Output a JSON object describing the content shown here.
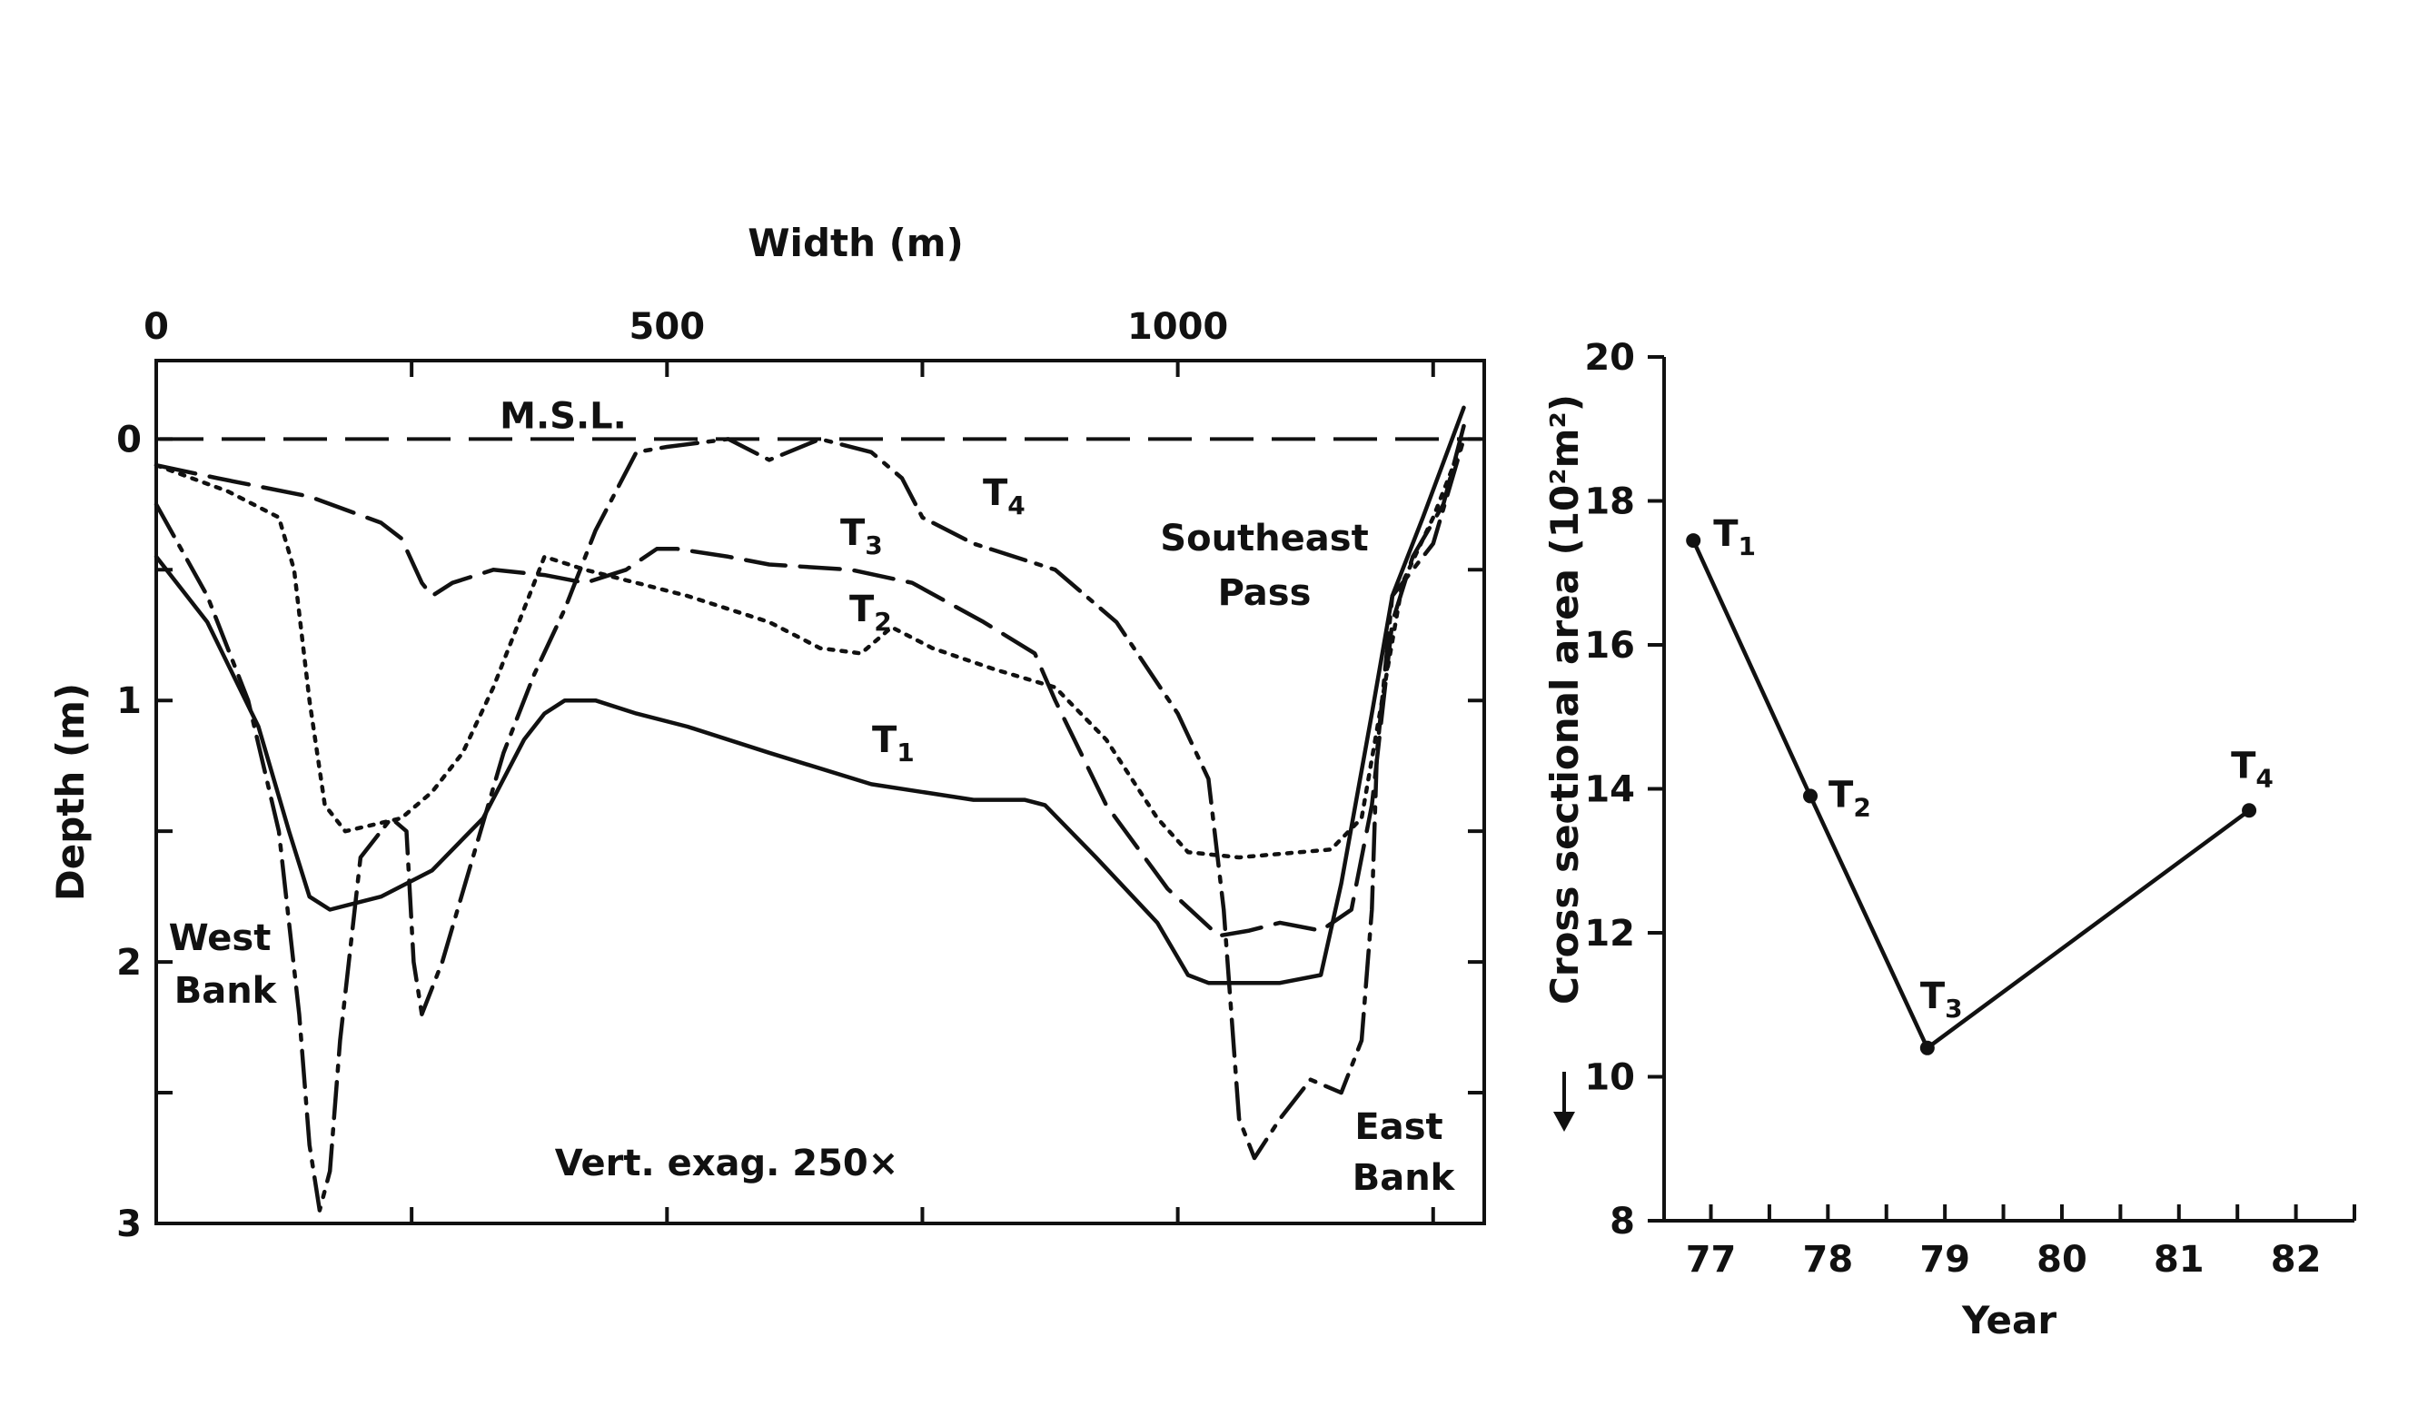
{
  "chart_data": [
    {
      "type": "line",
      "title": "",
      "xlabel": "Width (m)",
      "ylabel": "Depth (m)",
      "xlim": [
        0,
        1300
      ],
      "ylim": [
        3,
        -0.3
      ],
      "x_ticks": [
        0,
        500,
        1000
      ],
      "y_ticks": [
        0,
        1,
        2,
        3
      ],
      "reference_line": {
        "label": "M.S.L.",
        "y": 0,
        "style": "dashed"
      },
      "annotations": [
        {
          "text_lines": [
            "Southeast",
            "Pass"
          ]
        },
        {
          "text_lines": [
            "West",
            "Bank"
          ]
        },
        {
          "text_lines": [
            "East",
            "Bank"
          ]
        },
        {
          "text_lines": [
            "Vert. exag. 250×"
          ]
        }
      ],
      "series": [
        {
          "name": "T1",
          "style": "solid",
          "points": [
            [
              0,
              0.45
            ],
            [
              50,
              0.7
            ],
            [
              100,
              1.1
            ],
            [
              130,
              1.5
            ],
            [
              150,
              1.75
            ],
            [
              170,
              1.8
            ],
            [
              220,
              1.75
            ],
            [
              270,
              1.65
            ],
            [
              320,
              1.45
            ],
            [
              360,
              1.15
            ],
            [
              380,
              1.05
            ],
            [
              400,
              1.0
            ],
            [
              430,
              1.0
            ],
            [
              470,
              1.05
            ],
            [
              520,
              1.1
            ],
            [
              600,
              1.2
            ],
            [
              700,
              1.32
            ],
            [
              800,
              1.38
            ],
            [
              850,
              1.38
            ],
            [
              870,
              1.4
            ],
            [
              920,
              1.6
            ],
            [
              980,
              1.85
            ],
            [
              1010,
              2.05
            ],
            [
              1030,
              2.08
            ],
            [
              1100,
              2.08
            ],
            [
              1140,
              2.05
            ],
            [
              1160,
              1.7
            ],
            [
              1190,
              1.05
            ],
            [
              1210,
              0.6
            ],
            [
              1240,
              0.3
            ],
            [
              1280,
              -0.12
            ]
          ]
        },
        {
          "name": "T2",
          "style": "dotted",
          "points": [
            [
              0,
              0.1
            ],
            [
              70,
              0.2
            ],
            [
              120,
              0.3
            ],
            [
              135,
              0.5
            ],
            [
              150,
              1.0
            ],
            [
              165,
              1.4
            ],
            [
              185,
              1.5
            ],
            [
              240,
              1.45
            ],
            [
              270,
              1.35
            ],
            [
              300,
              1.2
            ],
            [
              330,
              0.95
            ],
            [
              360,
              0.65
            ],
            [
              380,
              0.45
            ],
            [
              420,
              0.5
            ],
            [
              470,
              0.55
            ],
            [
              520,
              0.6
            ],
            [
              600,
              0.7
            ],
            [
              650,
              0.8
            ],
            [
              690,
              0.82
            ],
            [
              720,
              0.72
            ],
            [
              760,
              0.8
            ],
            [
              820,
              0.88
            ],
            [
              880,
              0.95
            ],
            [
              930,
              1.15
            ],
            [
              980,
              1.45
            ],
            [
              1010,
              1.58
            ],
            [
              1060,
              1.6
            ],
            [
              1150,
              1.57
            ],
            [
              1180,
              1.45
            ],
            [
              1200,
              1.0
            ],
            [
              1220,
              0.55
            ],
            [
              1250,
              0.3
            ],
            [
              1280,
              0.0
            ]
          ]
        },
        {
          "name": "T3",
          "style": "dashed",
          "points": [
            [
              0,
              0.1
            ],
            [
              60,
              0.15
            ],
            [
              150,
              0.22
            ],
            [
              220,
              0.32
            ],
            [
              240,
              0.38
            ],
            [
              260,
              0.55
            ],
            [
              270,
              0.6
            ],
            [
              290,
              0.55
            ],
            [
              330,
              0.5
            ],
            [
              380,
              0.52
            ],
            [
              420,
              0.55
            ],
            [
              460,
              0.5
            ],
            [
              490,
              0.42
            ],
            [
              510,
              0.42
            ],
            [
              560,
              0.45
            ],
            [
              600,
              0.48
            ],
            [
              680,
              0.5
            ],
            [
              740,
              0.55
            ],
            [
              810,
              0.7
            ],
            [
              860,
              0.82
            ],
            [
              880,
              1.0
            ],
            [
              930,
              1.4
            ],
            [
              990,
              1.72
            ],
            [
              1040,
              1.9
            ],
            [
              1070,
              1.88
            ],
            [
              1100,
              1.85
            ],
            [
              1140,
              1.88
            ],
            [
              1170,
              1.8
            ],
            [
              1190,
              1.4
            ],
            [
              1210,
              0.7
            ],
            [
              1230,
              0.45
            ],
            [
              1260,
              0.25
            ],
            [
              1280,
              -0.05
            ]
          ]
        },
        {
          "name": "T4",
          "style": "dash-dot",
          "points": [
            [
              0,
              0.25
            ],
            [
              50,
              0.6
            ],
            [
              90,
              1.0
            ],
            [
              120,
              1.5
            ],
            [
              140,
              2.2
            ],
            [
              150,
              2.7
            ],
            [
              160,
              2.95
            ],
            [
              170,
              2.8
            ],
            [
              180,
              2.3
            ],
            [
              200,
              1.6
            ],
            [
              230,
              1.45
            ],
            [
              245,
              1.5
            ],
            [
              252,
              2.0
            ],
            [
              260,
              2.2
            ],
            [
              280,
              2.0
            ],
            [
              310,
              1.6
            ],
            [
              340,
              1.2
            ],
            [
              370,
              0.9
            ],
            [
              400,
              0.65
            ],
            [
              430,
              0.35
            ],
            [
              470,
              0.05
            ],
            [
              500,
              0.03
            ],
            [
              560,
              0.0
            ],
            [
              600,
              0.08
            ],
            [
              650,
              0.0
            ],
            [
              700,
              0.05
            ],
            [
              730,
              0.15
            ],
            [
              750,
              0.3
            ],
            [
              800,
              0.4
            ],
            [
              880,
              0.5
            ],
            [
              940,
              0.7
            ],
            [
              1000,
              1.05
            ],
            [
              1030,
              1.3
            ],
            [
              1045,
              1.8
            ],
            [
              1060,
              2.6
            ],
            [
              1075,
              2.75
            ],
            [
              1100,
              2.6
            ],
            [
              1130,
              2.45
            ],
            [
              1160,
              2.5
            ],
            [
              1180,
              2.3
            ],
            [
              1190,
              1.8
            ],
            [
              1195,
              1.2
            ],
            [
              1210,
              0.6
            ],
            [
              1250,
              0.4
            ],
            [
              1280,
              -0.0
            ]
          ]
        }
      ]
    },
    {
      "type": "line",
      "title": "",
      "xlabel": "Year",
      "ylabel": "Cross sectional area (10²m²)",
      "xlim": [
        76.6,
        82.5
      ],
      "ylim": [
        8,
        20
      ],
      "x_ticks": [
        77,
        78,
        79,
        80,
        81,
        82
      ],
      "y_ticks": [
        8,
        10,
        12,
        14,
        16,
        18,
        20
      ],
      "series": [
        {
          "name": "",
          "points": [
            {
              "x": 76.85,
              "y": 17.45,
              "label": "T1"
            },
            {
              "x": 77.85,
              "y": 13.9,
              "label": "T2"
            },
            {
              "x": 78.85,
              "y": 10.4,
              "label": "T3"
            },
            {
              "x": 81.6,
              "y": 13.7,
              "label": "T4"
            }
          ]
        }
      ]
    }
  ]
}
